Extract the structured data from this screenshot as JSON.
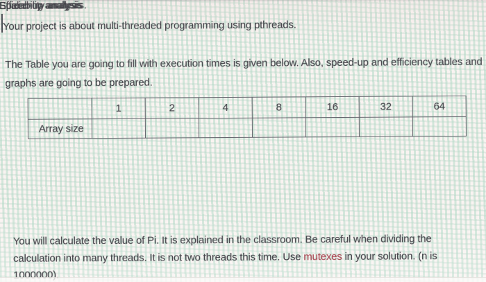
{
  "page": {
    "intro": "Your project is about multi-threaded programming using pthreads.",
    "description": "The Table you are going to fill with execution times is given below. Also, speed-up and efficiency tables and graphs are going to be prepared.",
    "table": {
      "corner_label": "",
      "row_label": "Array size",
      "thread_counts": [
        "1",
        "2",
        "4",
        "8",
        "16",
        "32",
        "64"
      ],
      "values": [
        "",
        "",
        "",
        "",
        "",
        "",
        ""
      ]
    },
    "analysis_items": [
      "Speed-up analysis",
      "Efficiency analysis",
      "Scalability analysis."
    ],
    "pi_paragraph": {
      "before": "You will calculate the value of Pi. It is explained in the classroom. Be careful when dividing the calculation into many threads. It is not two threads this time. Use ",
      "highlight": "mutexes",
      "after": " in your solution. (n is 1000000)."
    },
    "colors": {
      "text": "#45454b",
      "highlight_red": "#a84a55",
      "stripe_mint": "#add8c4",
      "base_background": "#f6f0ee",
      "table_border": "#63636b"
    }
  }
}
